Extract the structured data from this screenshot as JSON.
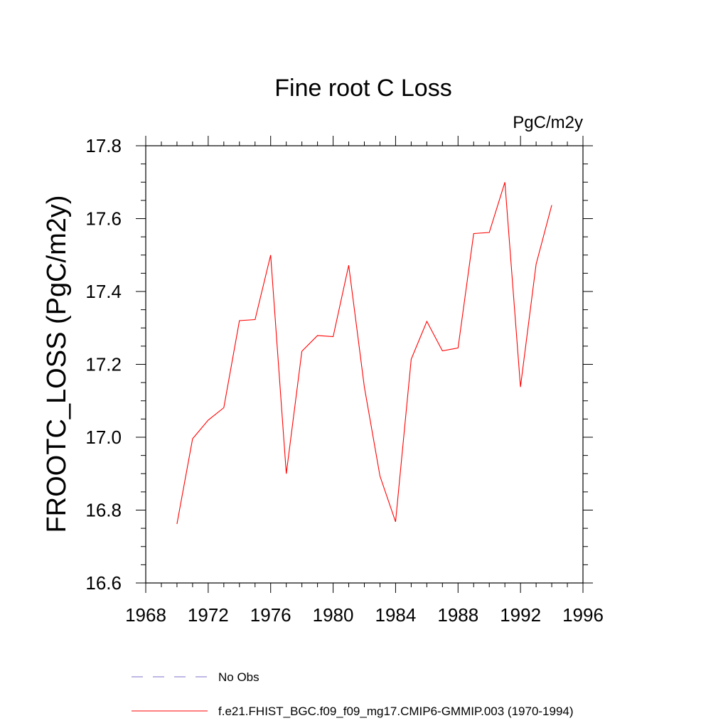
{
  "chart_data": {
    "type": "line",
    "title": "Fine root C Loss",
    "units": "PgC/m2y",
    "xlabel": "",
    "ylabel": "FROOTC_LOSS  (PgC/m2y)",
    "xlim": [
      1968,
      1996
    ],
    "ylim": [
      16.6,
      17.8
    ],
    "x_ticks": [
      1968,
      1972,
      1976,
      1980,
      1984,
      1988,
      1992,
      1996
    ],
    "x_tick_labels": [
      "1968",
      "1972",
      "1976",
      "1980",
      "1984",
      "1988",
      "1992",
      "1996"
    ],
    "y_ticks": [
      16.6,
      16.8,
      17.0,
      17.2,
      17.4,
      17.6,
      17.8
    ],
    "y_tick_labels": [
      "16.6",
      "16.8",
      "17.0",
      "17.2",
      "17.4",
      "17.6",
      "17.8"
    ],
    "x": [
      1970,
      1971,
      1972,
      1973,
      1974,
      1975,
      1976,
      1977,
      1978,
      1979,
      1980,
      1981,
      1982,
      1983,
      1984,
      1985,
      1986,
      1987,
      1988,
      1989,
      1990,
      1991,
      1992,
      1993,
      1994
    ],
    "series": [
      {
        "name": "f.e21.FHIST_BGC.f09_f09_mg17.CMIP6-GMMIP.003 (1970-1994)",
        "color": "#ff0000",
        "style": "solid",
        "values": [
          16.762,
          16.996,
          17.047,
          17.081,
          17.32,
          17.323,
          17.5,
          16.9,
          17.236,
          17.279,
          17.276,
          17.472,
          17.138,
          16.893,
          16.768,
          17.214,
          17.318,
          17.237,
          17.245,
          17.559,
          17.562,
          17.7,
          17.138,
          17.475,
          17.637
        ]
      }
    ],
    "legend": [
      {
        "label": "No Obs",
        "color": "#7b72c8",
        "style": "dashed"
      },
      {
        "label": "f.e21.FHIST_BGC.f09_f09_mg17.CMIP6-GMMIP.003 (1970-1994)",
        "color": "#ff0000",
        "style": "solid"
      }
    ],
    "legend_position": "bottom",
    "grid": false
  }
}
